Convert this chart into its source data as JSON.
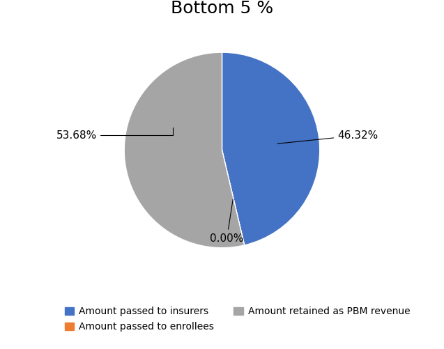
{
  "title": "Bottom 5 %",
  "values": [
    46.32,
    0.0,
    53.68
  ],
  "autopct_labels": [
    "46.32%",
    "0.00%",
    "53.68%"
  ],
  "colors": [
    "#4472C4",
    "#ED7D31",
    "#A5A5A5"
  ],
  "legend_labels": [
    "Amount passed to insurers",
    "Amount passed to enrollees",
    "Amount retained as PBM revenue"
  ],
  "title_fontsize": 18,
  "background_color": "#FFFFFF",
  "startangle": 90
}
